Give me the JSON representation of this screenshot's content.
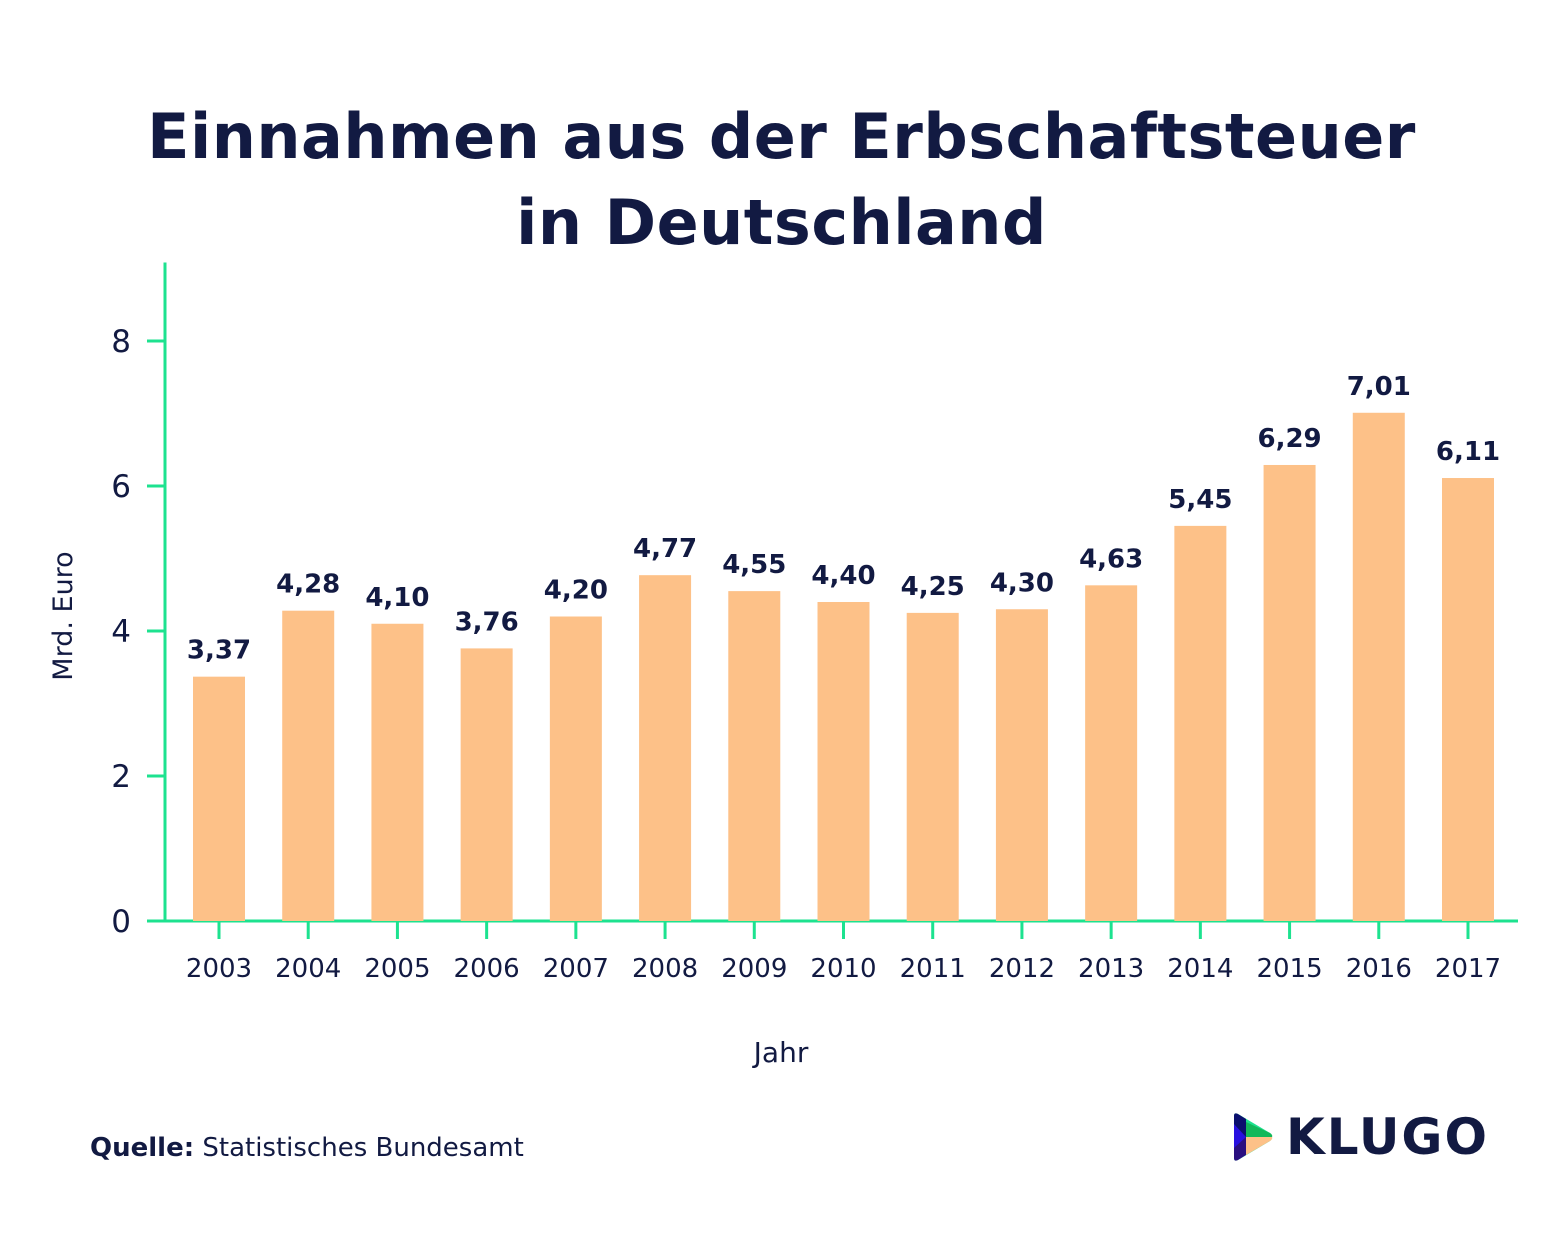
{
  "chart_data": {
    "type": "bar",
    "title": "Einnahmen aus der Erbschaftsteuer in Deutschland",
    "title_lines": [
      "Einnahmen aus der Erbschaftsteuer",
      "in Deutschland"
    ],
    "xlabel": "Jahr",
    "ylabel": "Mrd. Euro",
    "categories": [
      "2003",
      "2004",
      "2005",
      "2006",
      "2007",
      "2008",
      "2009",
      "2010",
      "2011",
      "2012",
      "2013",
      "2014",
      "2015",
      "2016",
      "2017"
    ],
    "values": [
      3.37,
      4.28,
      4.1,
      3.76,
      4.2,
      4.77,
      4.55,
      4.4,
      4.25,
      4.3,
      4.63,
      5.45,
      6.29,
      7.01,
      6.11
    ],
    "data_labels": [
      "3,37",
      "4,28",
      "4,10",
      "3,76",
      "4,20",
      "4,77",
      "4,55",
      "4,40",
      "4,25",
      "4,30",
      "4,63",
      "5,45",
      "6,29",
      "7,01",
      "6,11"
    ],
    "ylim": [
      0,
      8.6
    ],
    "yticks": [
      "0",
      "2",
      "4",
      "6",
      "8"
    ],
    "grid": false,
    "colors": {
      "bar": "#fdc188",
      "axis": "#1de28f",
      "text": "#121a42"
    }
  },
  "footer": {
    "source_label": "Quelle:",
    "source_text": "Statistisches Bundesamt",
    "logo_text": "KLUGO"
  }
}
